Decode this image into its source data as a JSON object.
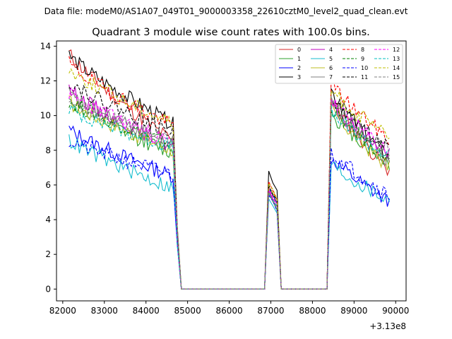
{
  "suptitle": "Data file: modeM0/AS1A07_049T01_9000003358_22610cztM0_level2_quad_clean.evt",
  "chart_data": {
    "type": "line",
    "title": "Quadrant 3 module wise count rates with 100.0s bins.",
    "xlabel": "",
    "ylabel": "",
    "x_offset_label": "+3.13e8",
    "xlim": [
      81850,
      90250
    ],
    "ylim": [
      -0.68,
      14.3
    ],
    "xticks": [
      82000,
      83000,
      84000,
      85000,
      86000,
      87000,
      88000,
      89000,
      90000
    ],
    "xtick_labels": [
      "82000",
      "83000",
      "84000",
      "85000",
      "86000",
      "87000",
      "88000",
      "89000",
      "90000"
    ],
    "yticks": [
      0,
      2,
      4,
      6,
      8,
      10,
      12,
      14
    ],
    "ytick_labels": [
      "0",
      "2",
      "4",
      "6",
      "8",
      "10",
      "12",
      "14"
    ],
    "legend_position": "top-right",
    "legend_columns": 4,
    "segments": [
      {
        "start": 82150,
        "end": 84650,
        "kind": "active"
      },
      {
        "start": 84750,
        "end": 84750,
        "kind": "drop"
      },
      {
        "start": 84850,
        "end": 86850,
        "kind": "zero"
      },
      {
        "start": 86950,
        "end": 87150,
        "kind": "spike"
      },
      {
        "start": 87250,
        "end": 88250,
        "kind": "zero"
      },
      {
        "start": 88350,
        "end": 88350,
        "kind": "rise"
      },
      {
        "start": 88450,
        "end": 89850,
        "kind": "active"
      }
    ],
    "series": [
      {
        "name": "0",
        "color": "#d62728",
        "dash": "solid",
        "start1": 13.6,
        "end1": 8.5,
        "start2": 11.0,
        "end2": 6.8,
        "spike": 5.6,
        "seed": 11
      },
      {
        "name": "1",
        "color": "#2ca02c",
        "dash": "solid",
        "start1": 10.8,
        "end1": 7.8,
        "start2": 10.2,
        "end2": 7.2,
        "spike": 5.5,
        "seed": 12
      },
      {
        "name": "2",
        "color": "#0000ff",
        "dash": "solid",
        "start1": 9.2,
        "end1": 6.5,
        "start2": 7.6,
        "end2": 5.0,
        "spike": 5.8,
        "seed": 13
      },
      {
        "name": "3",
        "color": "#000000",
        "dash": "solid",
        "start1": 13.5,
        "end1": 9.5,
        "start2": 11.5,
        "end2": 7.5,
        "spike": 6.8,
        "seed": 14
      },
      {
        "name": "4",
        "color": "#bf00bf",
        "dash": "solid",
        "start1": 11.5,
        "end1": 8.2,
        "start2": 10.6,
        "end2": 7.8,
        "spike": 5.7,
        "seed": 15
      },
      {
        "name": "5",
        "color": "#17becf",
        "dash": "solid",
        "start1": 8.6,
        "end1": 5.8,
        "start2": 7.2,
        "end2": 5.1,
        "spike": 5.2,
        "seed": 16
      },
      {
        "name": "6",
        "color": "#bcbd22",
        "dash": "solid",
        "start1": 10.8,
        "end1": 8.0,
        "start2": 10.4,
        "end2": 7.0,
        "spike": 5.9,
        "seed": 17
      },
      {
        "name": "7",
        "color": "#7f7f7f",
        "dash": "solid",
        "start1": 11.2,
        "end1": 8.3,
        "start2": 10.7,
        "end2": 7.3,
        "spike": 5.6,
        "seed": 18
      },
      {
        "name": "8",
        "color": "#ff0000",
        "dash": "dashed",
        "start1": 13.0,
        "end1": 9.4,
        "start2": 11.9,
        "end2": 8.6,
        "spike": 6.2,
        "seed": 19
      },
      {
        "name": "9",
        "color": "#008000",
        "dash": "dashed",
        "start1": 10.9,
        "end1": 8.3,
        "start2": 10.5,
        "end2": 7.5,
        "spike": 5.8,
        "seed": 20
      },
      {
        "name": "10",
        "color": "#0000ff",
        "dash": "dashed",
        "start1": 8.6,
        "end1": 6.6,
        "start2": 8.0,
        "end2": 5.4,
        "spike": 5.4,
        "seed": 21
      },
      {
        "name": "11",
        "color": "#000000",
        "dash": "dashed",
        "start1": 12.0,
        "end1": 9.0,
        "start2": 11.2,
        "end2": 8.0,
        "spike": 6.0,
        "seed": 22
      },
      {
        "name": "12",
        "color": "#ff00ff",
        "dash": "dashed",
        "start1": 11.3,
        "end1": 8.4,
        "start2": 10.9,
        "end2": 7.9,
        "spike": 5.8,
        "seed": 23
      },
      {
        "name": "13",
        "color": "#00bfbf",
        "dash": "dashed",
        "start1": 10.4,
        "end1": 8.2,
        "start2": 10.2,
        "end2": 7.6,
        "spike": 5.5,
        "seed": 24
      },
      {
        "name": "14",
        "color": "#bfbf00",
        "dash": "dashed",
        "start1": 12.7,
        "end1": 9.6,
        "start2": 11.5,
        "end2": 8.7,
        "spike": 6.1,
        "seed": 25
      },
      {
        "name": "15",
        "color": "#808080",
        "dash": "dashed",
        "start1": 11.0,
        "end1": 8.5,
        "start2": 10.8,
        "end2": 7.9,
        "spike": 5.6,
        "seed": 26
      }
    ]
  }
}
